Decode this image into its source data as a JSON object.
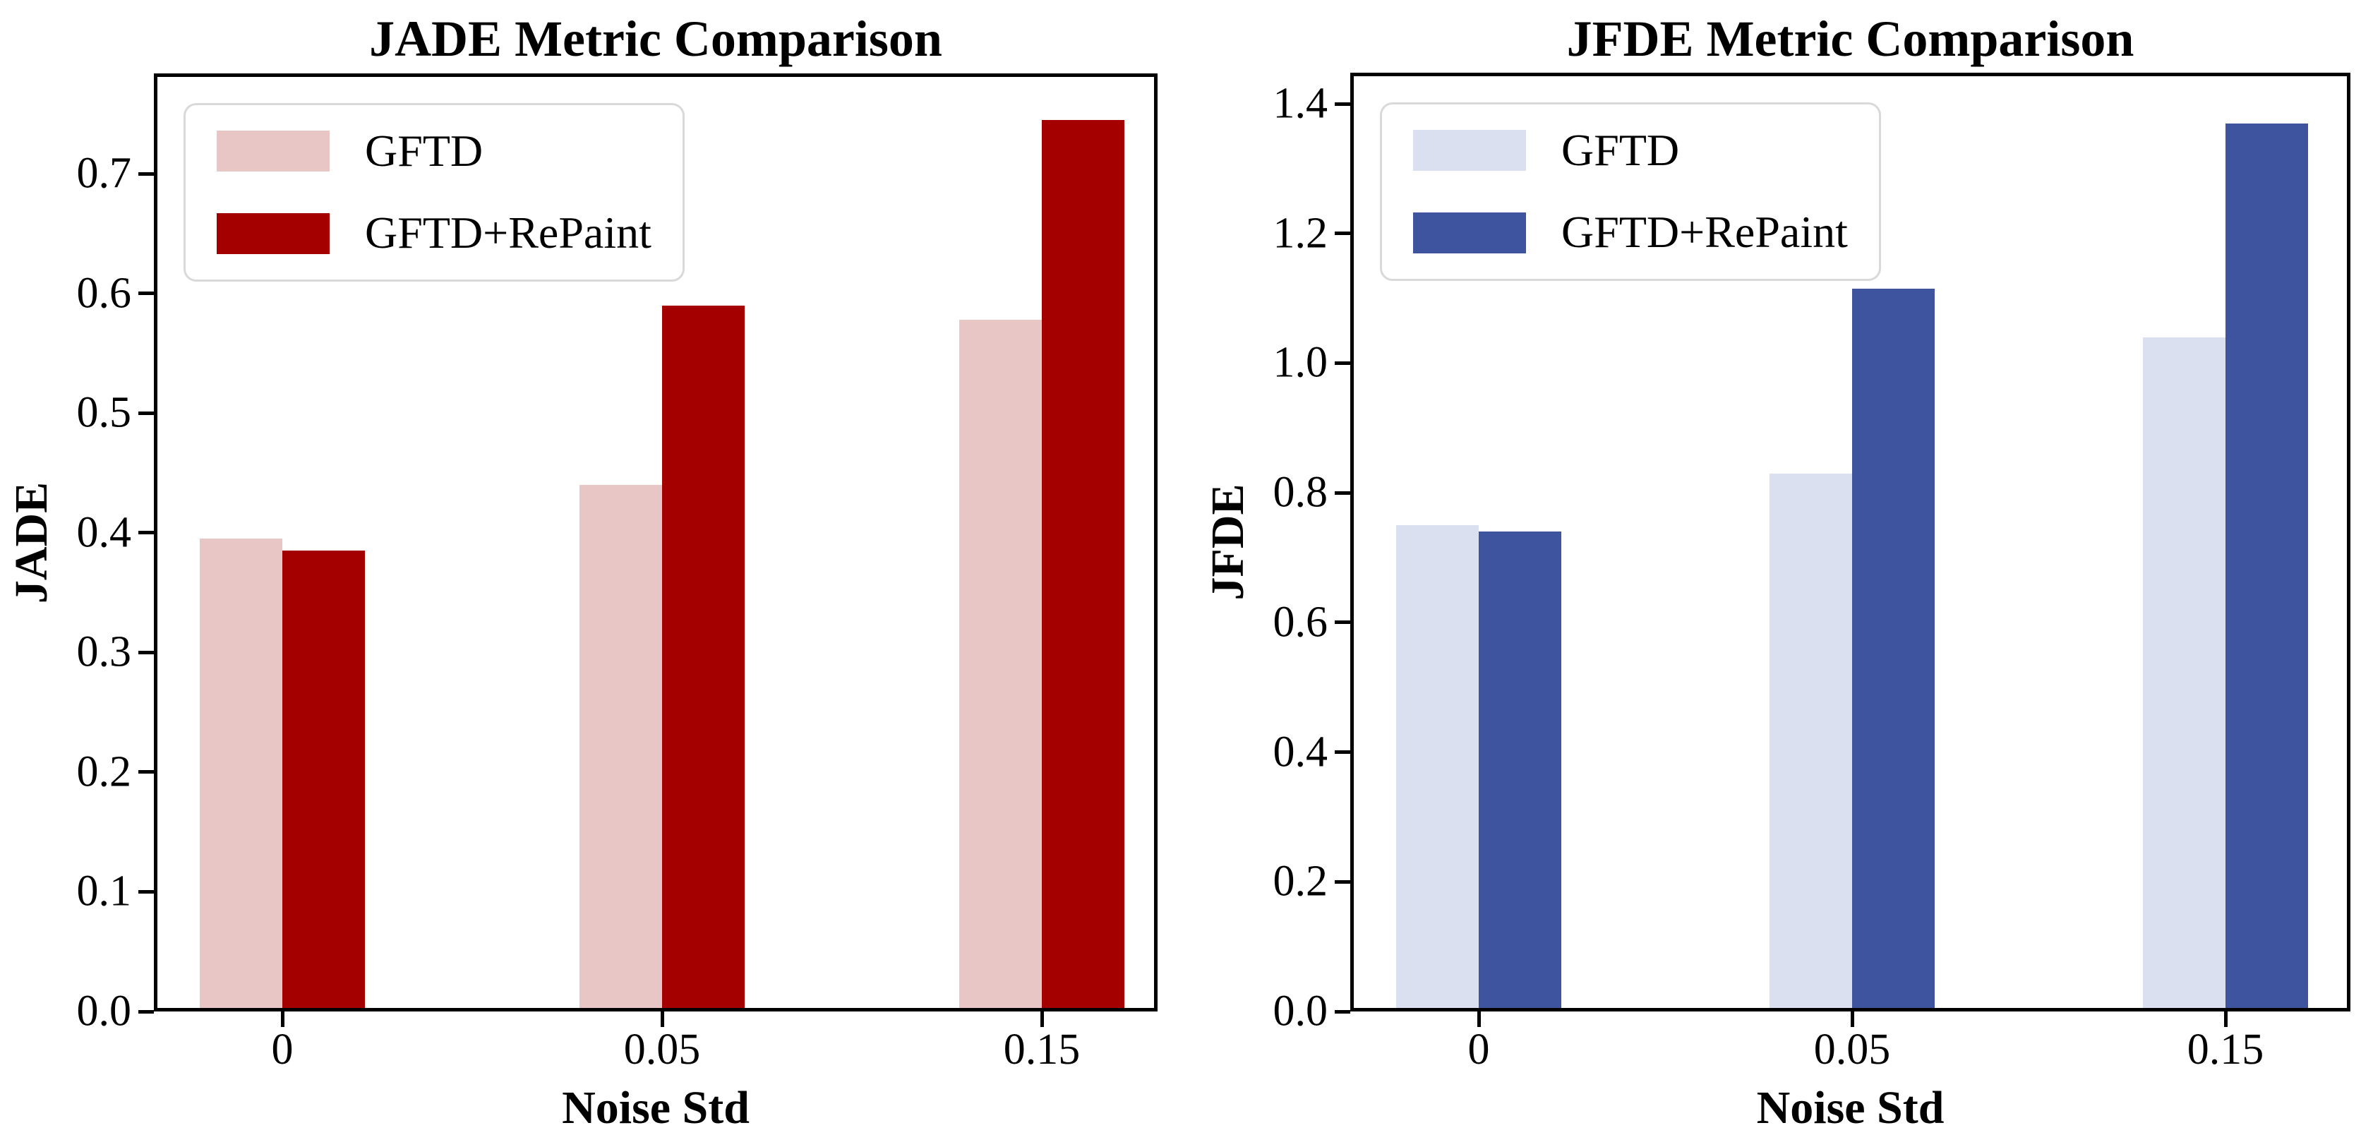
{
  "figure": {
    "background_color": "#ffffff",
    "text_color": "#000000",
    "legend_border_color": "#d9d9d9"
  },
  "chart_data": [
    {
      "type": "bar",
      "title": "JADE Metric Comparison",
      "ylabel": "JADE",
      "xlabel": "Noise Std",
      "categories": [
        "0",
        "0.05",
        "0.15"
      ],
      "series": [
        {
          "name": "GFTD",
          "color": "#e8c6c6",
          "values": [
            0.395,
            0.44,
            0.578
          ]
        },
        {
          "name": "GFTD+RePaint",
          "color": "#a40000",
          "values": [
            0.385,
            0.59,
            0.745
          ]
        }
      ],
      "ylim": [
        0,
        0.784
      ],
      "ytick_values": [
        0.0,
        0.1,
        0.2,
        0.3,
        0.4,
        0.5,
        0.6,
        0.7
      ],
      "ytick_labels": [
        "0.0",
        "0.1",
        "0.2",
        "0.3",
        "0.4",
        "0.5",
        "0.6",
        "0.7"
      ],
      "grid": false,
      "legend_position": "upper left"
    },
    {
      "type": "bar",
      "title": "JFDE Metric Comparison",
      "ylabel": "JFDE",
      "xlabel": "Noise Std",
      "categories": [
        "0",
        "0.05",
        "0.15"
      ],
      "series": [
        {
          "name": "GFTD",
          "color": "#dbe0f1",
          "values": [
            0.75,
            0.83,
            1.04
          ]
        },
        {
          "name": "GFTD+RePaint",
          "color": "#3e549e",
          "values": [
            0.74,
            1.115,
            1.37
          ]
        }
      ],
      "ylim": [
        0,
        1.448
      ],
      "ytick_values": [
        0.0,
        0.2,
        0.4,
        0.6,
        0.8,
        1.0,
        1.2,
        1.4
      ],
      "ytick_labels": [
        "0.0",
        "0.2",
        "0.4",
        "0.6",
        "0.8",
        "1.0",
        "1.2",
        "1.4"
      ],
      "grid": false,
      "legend_position": "upper left"
    }
  ]
}
